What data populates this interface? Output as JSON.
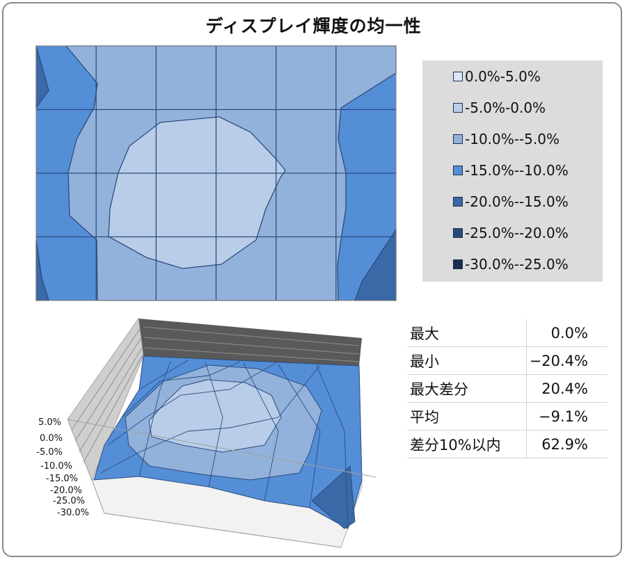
{
  "title": "ディスプレイ輝度の均一性",
  "chart_data": [
    {
      "type": "heatmap",
      "title": "ディスプレイ輝度の均一性",
      "legend_placement": "right",
      "legend": [
        {
          "label": "0.0%-5.0%",
          "color": "#dbe5f3"
        },
        {
          "label": "-5.0%-0.0%",
          "color": "#b9cde8"
        },
        {
          "label": "-10.0%--5.0%",
          "color": "#93b2db"
        },
        {
          "label": "-15.0%--10.0%",
          "color": "#548ed7"
        },
        {
          "label": "-20.0%--15.0%",
          "color": "#3b69a7"
        },
        {
          "label": "-25.0%--20.0%",
          "color": "#2a4b7e"
        },
        {
          "label": "-30.0%--25.0%",
          "color": "#1a2d4f"
        }
      ],
      "grid": true
    },
    {
      "type": "surface",
      "z_tick_labels": [
        "5.0%",
        "0.0%",
        "-5.0%",
        "-10.0%",
        "-15.0%",
        "-20.0%",
        "-25.0%",
        "-30.0%"
      ],
      "zlim": [
        -30.0,
        5.0
      ]
    },
    {
      "type": "table",
      "rows": [
        {
          "label": "最大",
          "value": "0.0%"
        },
        {
          "label": "最小",
          "value": "−20.4%"
        },
        {
          "label": "最大差分",
          "value": "20.4%"
        },
        {
          "label": "平均",
          "value": "−9.1%"
        },
        {
          "label": "差分10%以内",
          "value": "62.9%"
        }
      ],
      "max": 0.0,
      "min": -20.4,
      "max_difference": 20.4,
      "average": -9.1,
      "within_10_percent": 62.9
    }
  ]
}
